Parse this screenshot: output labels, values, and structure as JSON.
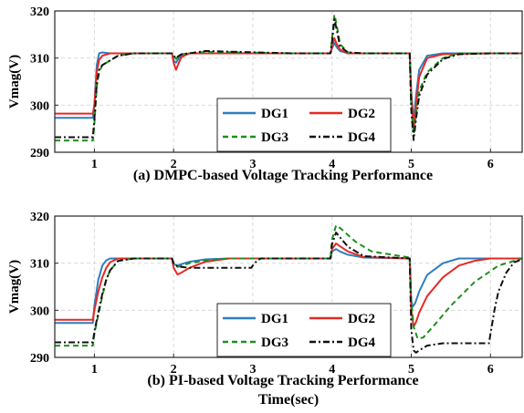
{
  "figure": {
    "xlabel": "Time(sec)"
  },
  "chart_data": [
    {
      "type": "line",
      "title": "(a) DMPC-based Voltage Tracking Performance",
      "xlabel": "",
      "ylabel": "Vmag(V)",
      "xlim": [
        0.5,
        6.4
      ],
      "ylim": [
        290,
        320
      ],
      "xticks": [
        1,
        2,
        3,
        4,
        5,
        6
      ],
      "yticks": [
        290,
        300,
        310,
        320
      ],
      "grid": true,
      "legend_position": "bottom-center",
      "series": [
        {
          "name": "DG1",
          "color": "#2E7EC0",
          "dash": "",
          "x": [
            0.5,
            0.98,
            1.0,
            1.03,
            1.06,
            1.1,
            1.2,
            1.5,
            1.98,
            2.0,
            2.03,
            2.06,
            2.1,
            2.2,
            2.4,
            2.8,
            3.5,
            3.98,
            4.0,
            4.03,
            4.06,
            4.1,
            4.2,
            4.4,
            4.98,
            5.0,
            5.03,
            5.06,
            5.1,
            5.2,
            5.4,
            6.0,
            6.4
          ],
          "y": [
            297.3,
            297.3,
            300,
            308.5,
            311,
            311.2,
            311,
            311,
            311,
            309.5,
            309,
            309.8,
            310.6,
            311,
            311,
            311,
            311,
            311,
            312,
            313.2,
            312.3,
            311.5,
            311,
            311,
            311,
            303,
            296.5,
            302,
            307.5,
            310.5,
            311,
            311,
            311
          ]
        },
        {
          "name": "DG2",
          "color": "#E52A25",
          "dash": "",
          "x": [
            0.5,
            0.98,
            1.0,
            1.03,
            1.06,
            1.1,
            1.2,
            1.5,
            1.98,
            2.0,
            2.03,
            2.06,
            2.1,
            2.2,
            2.4,
            2.8,
            3.5,
            3.98,
            4.0,
            4.03,
            4.06,
            4.1,
            4.2,
            4.4,
            4.98,
            5.0,
            5.03,
            5.06,
            5.1,
            5.2,
            5.4,
            6.0,
            6.4
          ],
          "y": [
            298.2,
            298.2,
            300,
            307,
            309.6,
            310.5,
            311,
            311,
            311,
            309,
            307.5,
            308.8,
            310.2,
            311,
            311,
            311,
            311,
            311,
            312.5,
            314.2,
            313,
            311.8,
            311,
            311,
            311,
            302,
            294.8,
            300,
            306,
            310,
            310.8,
            311,
            311
          ]
        },
        {
          "name": "DG3",
          "color": "#1E8F1E",
          "dash": "6 4",
          "x": [
            0.5,
            0.98,
            1.0,
            1.03,
            1.06,
            1.1,
            1.2,
            1.3,
            1.5,
            1.98,
            2.0,
            2.03,
            2.06,
            2.1,
            2.2,
            2.4,
            2.8,
            3.5,
            3.98,
            4.0,
            4.03,
            4.06,
            4.1,
            4.2,
            4.4,
            4.98,
            5.0,
            5.03,
            5.06,
            5.1,
            5.2,
            5.4,
            5.6,
            6.0,
            6.4
          ],
          "y": [
            292.5,
            292.5,
            296,
            304,
            307,
            308.5,
            309.5,
            310.5,
            311,
            311,
            310.5,
            309.8,
            310.3,
            310.8,
            311,
            311.3,
            311.2,
            311,
            311,
            314,
            319.2,
            317,
            313,
            311.2,
            311,
            311,
            300,
            293.8,
            298,
            303,
            307,
            310,
            311,
            311,
            311
          ]
        },
        {
          "name": "DG4",
          "color": "#111111",
          "dash": "7 3 2 3",
          "x": [
            0.5,
            0.98,
            1.0,
            1.03,
            1.06,
            1.1,
            1.2,
            1.3,
            1.5,
            1.98,
            2.0,
            2.03,
            2.06,
            2.1,
            2.2,
            2.4,
            2.8,
            3.5,
            3.98,
            4.0,
            4.03,
            4.06,
            4.1,
            4.2,
            4.4,
            4.98,
            5.0,
            5.03,
            5.06,
            5.1,
            5.2,
            5.4,
            5.6,
            6.0,
            6.4
          ],
          "y": [
            293.2,
            293.2,
            297,
            304.5,
            307.5,
            308.5,
            309.5,
            310.5,
            311,
            311,
            310.5,
            310,
            310.4,
            310.8,
            311,
            311.5,
            311.3,
            311,
            311,
            313.5,
            318.2,
            316,
            312.5,
            311.2,
            311,
            311,
            299,
            292.6,
            297,
            302,
            306.5,
            309.8,
            310.8,
            311,
            311
          ]
        }
      ]
    },
    {
      "type": "line",
      "title": "(b) PI-based Voltage Tracking Performance",
      "xlabel": "Time(sec)",
      "ylabel": "Vmag(V)",
      "xlim": [
        0.5,
        6.4
      ],
      "ylim": [
        290,
        320
      ],
      "xticks": [
        1,
        2,
        3,
        4,
        5,
        6
      ],
      "yticks": [
        290,
        300,
        310,
        320
      ],
      "grid": true,
      "legend_position": "bottom-center",
      "series": [
        {
          "name": "DG1",
          "color": "#2E7EC0",
          "dash": "",
          "x": [
            0.5,
            0.98,
            1.0,
            1.05,
            1.1,
            1.15,
            1.2,
            1.3,
            1.5,
            1.98,
            2.0,
            2.05,
            2.1,
            2.2,
            2.4,
            2.7,
            3.0,
            3.5,
            3.98,
            4.0,
            4.05,
            4.1,
            4.2,
            4.4,
            4.98,
            5.0,
            5.02,
            5.05,
            5.1,
            5.2,
            5.4,
            5.6,
            6.0,
            6.4
          ],
          "y": [
            297.3,
            297.3,
            301,
            306.5,
            309.5,
            310.6,
            311,
            311,
            311,
            311,
            309.8,
            309.5,
            309.8,
            310.3,
            310.8,
            311,
            311,
            311,
            311,
            312.5,
            313,
            312.5,
            311.8,
            311.2,
            311,
            302,
            300.8,
            301.5,
            304,
            307.5,
            310,
            311,
            311,
            311
          ]
        },
        {
          "name": "DG2",
          "color": "#E52A25",
          "dash": "",
          "x": [
            0.5,
            0.98,
            1.0,
            1.05,
            1.1,
            1.15,
            1.2,
            1.3,
            1.5,
            1.98,
            2.0,
            2.05,
            2.1,
            2.2,
            2.4,
            2.7,
            3.0,
            3.5,
            3.98,
            4.0,
            4.05,
            4.1,
            4.2,
            4.4,
            4.98,
            5.0,
            5.03,
            5.06,
            5.1,
            5.2,
            5.4,
            5.6,
            5.8,
            6.0,
            6.4
          ],
          "y": [
            298,
            298,
            300,
            304,
            307,
            309,
            310.2,
            311,
            311,
            311,
            309,
            307.6,
            308,
            309,
            310.3,
            311,
            311,
            311,
            311,
            313,
            314.2,
            313.6,
            312.5,
            311.3,
            311,
            300,
            296.5,
            297.5,
            299.5,
            303,
            307,
            309.5,
            310.5,
            311,
            311
          ]
        },
        {
          "name": "DG3",
          "color": "#1E8F1E",
          "dash": "6 4",
          "x": [
            0.5,
            0.98,
            1.0,
            1.05,
            1.1,
            1.15,
            1.2,
            1.3,
            1.5,
            1.98,
            2.0,
            2.05,
            2.1,
            2.2,
            2.4,
            2.7,
            3.0,
            3.5,
            3.98,
            4.0,
            4.05,
            4.1,
            4.2,
            4.3,
            4.5,
            4.98,
            5.0,
            5.03,
            5.08,
            5.15,
            5.3,
            5.5,
            5.8,
            6.1,
            6.4
          ],
          "y": [
            292.5,
            292.5,
            295,
            299,
            303,
            306.5,
            308.5,
            310.5,
            311,
            311,
            310,
            309.2,
            309.5,
            310,
            310.6,
            311,
            311,
            311,
            311,
            315,
            318,
            317.5,
            316,
            314.5,
            312.5,
            311.2,
            302,
            296.5,
            294,
            294.2,
            297,
            301,
            306,
            309.5,
            311
          ]
        },
        {
          "name": "DG4",
          "color": "#111111",
          "dash": "7 3 2 3",
          "x": [
            0.5,
            0.98,
            1.0,
            1.05,
            1.1,
            1.15,
            1.2,
            1.3,
            1.5,
            1.98,
            2.0,
            2.05,
            2.1,
            2.2,
            2.5,
            2.98,
            3.0,
            3.05,
            3.1,
            3.3,
            3.98,
            4.0,
            4.05,
            4.1,
            4.2,
            4.4,
            4.98,
            5.0,
            5.03,
            5.06,
            5.1,
            5.2,
            5.4,
            5.7,
            5.98,
            6.0,
            6.05,
            6.1,
            6.2,
            6.3,
            6.4
          ],
          "y": [
            293.2,
            293.2,
            295.5,
            299.5,
            303.5,
            306.5,
            308.5,
            310.5,
            311,
            311,
            310,
            309.3,
            309.2,
            309,
            309,
            309,
            309.5,
            310.5,
            311,
            311,
            311,
            314,
            316.5,
            315.5,
            313.5,
            311.5,
            311,
            296,
            291.5,
            291,
            291.5,
            292.5,
            293,
            293,
            293,
            295,
            300,
            304,
            308,
            310.2,
            310.8
          ]
        }
      ]
    }
  ]
}
